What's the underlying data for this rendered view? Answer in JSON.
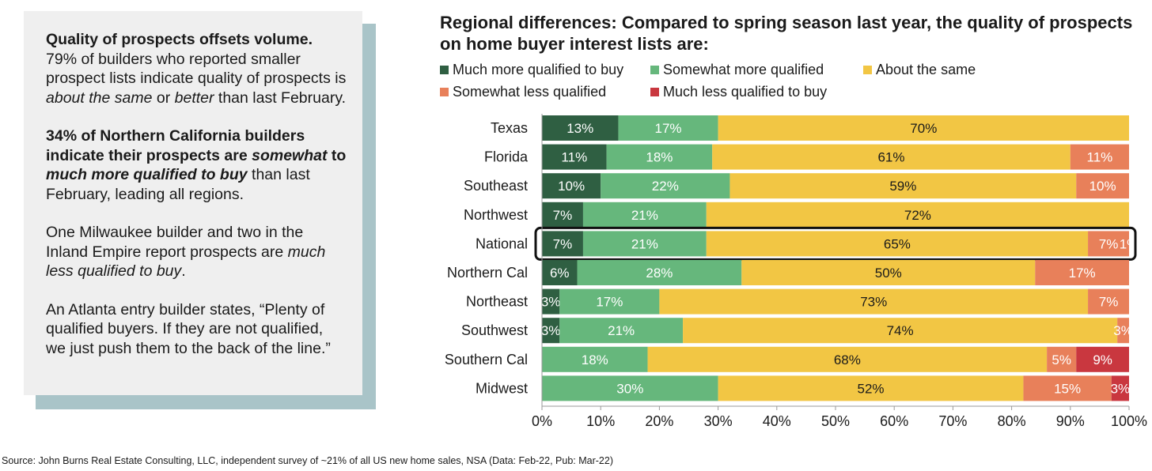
{
  "panel": {
    "p1_bold": "Quality of prospects offsets volume.",
    "p1_text_a": " 79% of builders who reported smaller prospect lists indicate quality of prospects is ",
    "p1_em1": "about the same",
    "p1_text_b": " or ",
    "p1_em2": "better",
    "p1_text_c": " than last February.",
    "p2_bold_a": "34% of Northern California builders indicate their prospects are ",
    "p2_bold_em1": "somewhat",
    "p2_bold_b": " to ",
    "p2_bold_em2": "much more qualified to buy",
    "p2_text": " than last February, leading all regions.",
    "p3_text": "One Milwaukee builder and two in the Inland Empire report prospects are ",
    "p3_em": "much less qualified to buy",
    "p3_end": ".",
    "p4_text": "An Atlanta entry builder states, “Plenty of qualified buyers. If they are not qualified, we just push them to the back of the line.”"
  },
  "source": "Source: John Burns Real Estate Consulting, LLC, independent survey of ~21%  of all US new home sales, NSA (Data: Feb-22, Pub: Mar-22)",
  "chart_data": {
    "type": "bar",
    "orientation": "horizontal",
    "stacked": true,
    "title": "Regional differences: Compared to spring season last year, the quality of prospects on home buyer interest lists are:",
    "categories": [
      "Texas",
      "Florida",
      "Southeast",
      "Northwest",
      "National",
      "Northern Cal",
      "Northeast",
      "Southwest",
      "Southern Cal",
      "Midwest"
    ],
    "series": [
      {
        "name": "Much more qualified to buy",
        "color": "#2f5f42",
        "values": [
          13,
          11,
          10,
          7,
          7,
          6,
          3,
          3,
          0,
          0
        ],
        "labels": [
          "13%",
          "11%",
          "10%",
          "7%",
          "7%",
          "6%",
          "3%",
          "3%",
          "",
          ""
        ]
      },
      {
        "name": "Somewhat more qualified",
        "color": "#66b77c",
        "values": [
          17,
          18,
          22,
          21,
          21,
          28,
          17,
          21,
          18,
          30
        ],
        "labels": [
          "17%",
          "18%",
          "22%",
          "21%",
          "21%",
          "28%",
          "17%",
          "21%",
          "18%",
          "30%"
        ]
      },
      {
        "name": "About the same",
        "color": "#f2c644",
        "values": [
          70,
          61,
          59,
          72,
          65,
          50,
          73,
          74,
          68,
          52
        ],
        "labels": [
          "70%",
          "61%",
          "59%",
          "72%",
          "65%",
          "50%",
          "73%",
          "74%",
          "68%",
          "52%"
        ]
      },
      {
        "name": "Somewhat less qualified",
        "color": "#e8805a",
        "values": [
          0,
          11,
          10,
          0,
          7,
          17,
          7,
          3,
          5,
          15
        ],
        "labels": [
          "",
          "11%",
          "10%",
          "",
          "7%",
          "17%",
          "7%",
          "3%",
          "5%",
          "15%"
        ]
      },
      {
        "name": "Much less qualified to buy",
        "color": "#c9373f",
        "values": [
          0,
          0,
          0,
          0,
          1,
          0,
          0,
          0,
          9,
          3
        ],
        "labels": [
          "",
          "",
          "",
          "",
          "1%",
          "",
          "",
          "",
          "9%",
          "3%"
        ]
      }
    ],
    "xaxis": {
      "min": 0,
      "max": 100,
      "ticks": [
        "0%",
        "10%",
        "20%",
        "30%",
        "40%",
        "50%",
        "60%",
        "70%",
        "80%",
        "90%",
        "100%"
      ]
    },
    "highlighted_category": "National",
    "legend_position": "top",
    "grid": false
  }
}
